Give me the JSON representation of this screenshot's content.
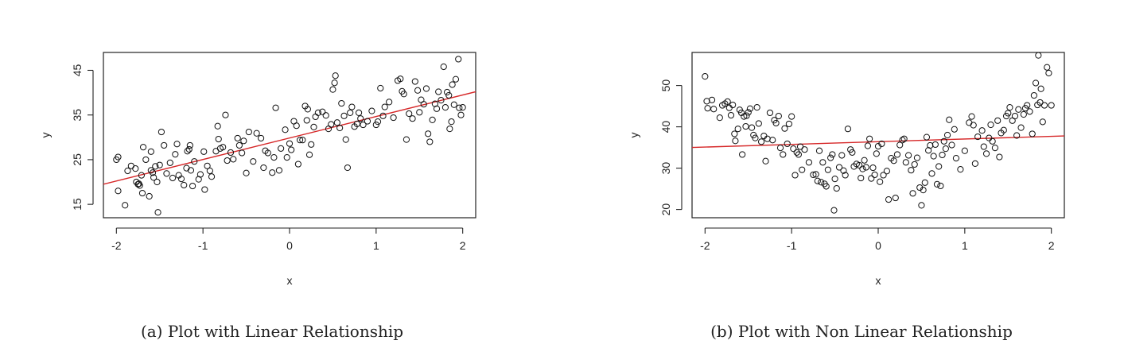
{
  "chart_data": [
    {
      "type": "scatter",
      "title": "",
      "caption": "(a) Plot with Linear Relationship",
      "xlabel": "x",
      "ylabel": "y",
      "xlim": [
        -2.15,
        2.15
      ],
      "ylim": [
        12,
        49
      ],
      "x_ticks": [
        -2,
        -1,
        0,
        1,
        2
      ],
      "x_tick_labels": [
        "-2",
        "-1",
        "0",
        "1",
        "2"
      ],
      "y_ticks": [
        15,
        25,
        35,
        45
      ],
      "y_tick_labels": [
        "15",
        "25",
        "35",
        "45"
      ],
      "fit_line": {
        "color": "#d62728",
        "x": [
          -2.15,
          2.15
        ],
        "y": [
          19.5,
          40.2
        ]
      },
      "points": [
        [
          -2.0,
          25
        ],
        [
          -1.98,
          25.6
        ],
        [
          -1.98,
          18
        ],
        [
          -1.9,
          14.8
        ],
        [
          -1.87,
          22.5
        ],
        [
          -1.83,
          23.6
        ],
        [
          -1.78,
          23
        ],
        [
          -1.77,
          20
        ],
        [
          -1.75,
          19.5
        ],
        [
          -1.74,
          19.6
        ],
        [
          -1.73,
          19.2
        ],
        [
          -1.71,
          21.5
        ],
        [
          -1.7,
          17.5
        ],
        [
          -1.69,
          27.8
        ],
        [
          -1.66,
          25
        ],
        [
          -1.62,
          16.8
        ],
        [
          -1.6,
          26.8
        ],
        [
          -1.6,
          22.6
        ],
        [
          -1.58,
          22.1
        ],
        [
          -1.57,
          21
        ],
        [
          -1.55,
          23.5
        ],
        [
          -1.53,
          20
        ],
        [
          -1.52,
          13.2
        ],
        [
          -1.5,
          23.8
        ],
        [
          -1.48,
          31.2
        ],
        [
          -1.45,
          28.2
        ],
        [
          -1.42,
          21.9
        ],
        [
          -1.38,
          24.3
        ],
        [
          -1.35,
          20.9
        ],
        [
          -1.32,
          26.2
        ],
        [
          -1.3,
          28.5
        ],
        [
          -1.28,
          21.5
        ],
        [
          -1.25,
          20.7
        ],
        [
          -1.22,
          19.3
        ],
        [
          -1.19,
          23.1
        ],
        [
          -1.18,
          26.9
        ],
        [
          -1.16,
          27.3
        ],
        [
          -1.15,
          28.2
        ],
        [
          -1.14,
          22.6
        ],
        [
          -1.12,
          19.1
        ],
        [
          -1.1,
          24.6
        ],
        [
          -1.05,
          20.6
        ],
        [
          -1.03,
          21.7
        ],
        [
          -0.99,
          26.8
        ],
        [
          -0.98,
          18.3
        ],
        [
          -0.95,
          23.6
        ],
        [
          -0.92,
          22.5
        ],
        [
          -0.9,
          21.2
        ],
        [
          -0.85,
          26.9
        ],
        [
          -0.83,
          32.5
        ],
        [
          -0.82,
          29.6
        ],
        [
          -0.8,
          27.5
        ],
        [
          -0.77,
          27.8
        ],
        [
          -0.74,
          35
        ],
        [
          -0.72,
          24.8
        ],
        [
          -0.68,
          26.6
        ],
        [
          -0.65,
          25.1
        ],
        [
          -0.6,
          29.8
        ],
        [
          -0.58,
          28.2
        ],
        [
          -0.55,
          26.5
        ],
        [
          -0.53,
          29.2
        ],
        [
          -0.5,
          22
        ],
        [
          -0.47,
          31.2
        ],
        [
          -0.42,
          24.6
        ],
        [
          -0.38,
          30.9
        ],
        [
          -0.33,
          29.8
        ],
        [
          -0.3,
          23.2
        ],
        [
          -0.28,
          27
        ],
        [
          -0.25,
          26.5
        ],
        [
          -0.2,
          22.1
        ],
        [
          -0.18,
          25.5
        ],
        [
          -0.16,
          36.6
        ],
        [
          -0.12,
          22.6
        ],
        [
          -0.1,
          27.5
        ],
        [
          -0.05,
          31.7
        ],
        [
          -0.03,
          25.5
        ],
        [
          0.0,
          28.6
        ],
        [
          0.02,
          27.2
        ],
        [
          0.05,
          33.6
        ],
        [
          0.08,
          32.6
        ],
        [
          0.1,
          24
        ],
        [
          0.12,
          29.4
        ],
        [
          0.15,
          29.4
        ],
        [
          0.18,
          37
        ],
        [
          0.2,
          33.8
        ],
        [
          0.21,
          36.3
        ],
        [
          0.23,
          26.1
        ],
        [
          0.25,
          28.4
        ],
        [
          0.28,
          32.3
        ],
        [
          0.3,
          34.6
        ],
        [
          0.33,
          35.5
        ],
        [
          0.38,
          35.7
        ],
        [
          0.42,
          34.9
        ],
        [
          0.45,
          31.9
        ],
        [
          0.48,
          32.9
        ],
        [
          0.5,
          40.7
        ],
        [
          0.52,
          42.2
        ],
        [
          0.53,
          43.8
        ],
        [
          0.55,
          33.3
        ],
        [
          0.58,
          32.1
        ],
        [
          0.6,
          37.6
        ],
        [
          0.63,
          34.8
        ],
        [
          0.65,
          29.5
        ],
        [
          0.67,
          23.2
        ],
        [
          0.7,
          35.5
        ],
        [
          0.72,
          36.8
        ],
        [
          0.75,
          32.4
        ],
        [
          0.78,
          33
        ],
        [
          0.8,
          35.5
        ],
        [
          0.82,
          34.2
        ],
        [
          0.85,
          32.8
        ],
        [
          0.9,
          33.6
        ],
        [
          0.95,
          35.9
        ],
        [
          1.0,
          32.8
        ],
        [
          1.02,
          33.5
        ],
        [
          1.05,
          41
        ],
        [
          1.08,
          34.8
        ],
        [
          1.1,
          36.8
        ],
        [
          1.15,
          37.9
        ],
        [
          1.2,
          34.4
        ],
        [
          1.25,
          42.7
        ],
        [
          1.28,
          43.1
        ],
        [
          1.3,
          40.3
        ],
        [
          1.32,
          39.7
        ],
        [
          1.35,
          29.5
        ],
        [
          1.38,
          35.3
        ],
        [
          1.42,
          34.2
        ],
        [
          1.45,
          42.5
        ],
        [
          1.48,
          40.5
        ],
        [
          1.5,
          35.6
        ],
        [
          1.52,
          38.4
        ],
        [
          1.55,
          37.4
        ],
        [
          1.58,
          40.9
        ],
        [
          1.6,
          30.8
        ],
        [
          1.62,
          29
        ],
        [
          1.65,
          33.9
        ],
        [
          1.68,
          37.5
        ],
        [
          1.7,
          36.4
        ],
        [
          1.72,
          40.2
        ],
        [
          1.75,
          38.3
        ],
        [
          1.78,
          45.8
        ],
        [
          1.8,
          36.7
        ],
        [
          1.82,
          40.1
        ],
        [
          1.84,
          39.4
        ],
        [
          1.85,
          31.9
        ],
        [
          1.87,
          33.5
        ],
        [
          1.88,
          41.8
        ],
        [
          1.9,
          37.3
        ],
        [
          1.92,
          43
        ],
        [
          1.95,
          47.5
        ],
        [
          1.96,
          36.6
        ],
        [
          1.98,
          35
        ],
        [
          2.0,
          36.7
        ]
      ]
    },
    {
      "type": "scatter",
      "title": "",
      "caption": "(b) Plot with Non Linear Relationship",
      "xlabel": "x",
      "ylabel": "y",
      "xlim": [
        -2.15,
        2.15
      ],
      "ylim": [
        18,
        58
      ],
      "x_ticks": [
        -2,
        -1,
        0,
        1,
        2
      ],
      "x_tick_labels": [
        "-2",
        "-1",
        "0",
        "1",
        "2"
      ],
      "y_ticks": [
        20,
        30,
        40,
        50
      ],
      "y_tick_labels": [
        "20",
        "30",
        "40",
        "50"
      ],
      "fit_line": {
        "color": "#d62728",
        "x": [
          -2.15,
          2.15
        ],
        "y": [
          35.0,
          37.8
        ]
      },
      "points": [
        [
          -2.0,
          52.2
        ],
        [
          -1.98,
          46.2
        ],
        [
          -1.97,
          44.5
        ],
        [
          -1.92,
          46.5
        ],
        [
          -1.9,
          44.3
        ],
        [
          -1.83,
          42.2
        ],
        [
          -1.8,
          45.2
        ],
        [
          -1.77,
          45.6
        ],
        [
          -1.74,
          46.1
        ],
        [
          -1.72,
          44.6
        ],
        [
          -1.7,
          42.8
        ],
        [
          -1.68,
          45.3
        ],
        [
          -1.66,
          38.3
        ],
        [
          -1.65,
          36.6
        ],
        [
          -1.62,
          39.5
        ],
        [
          -1.6,
          44.1
        ],
        [
          -1.58,
          43.4
        ],
        [
          -1.57,
          33.3
        ],
        [
          -1.55,
          42.5
        ],
        [
          -1.53,
          40.1
        ],
        [
          -1.52,
          42.7
        ],
        [
          -1.5,
          43.5
        ],
        [
          -1.48,
          44.4
        ],
        [
          -1.46,
          39.8
        ],
        [
          -1.44,
          38
        ],
        [
          -1.42,
          37.3
        ],
        [
          -1.4,
          44.7
        ],
        [
          -1.38,
          40.8
        ],
        [
          -1.35,
          36.4
        ],
        [
          -1.32,
          37.8
        ],
        [
          -1.3,
          31.7
        ],
        [
          -1.28,
          37.1
        ],
        [
          -1.25,
          43.4
        ],
        [
          -1.22,
          36.8
        ],
        [
          -1.2,
          41.6
        ],
        [
          -1.18,
          40.9
        ],
        [
          -1.15,
          42.6
        ],
        [
          -1.13,
          34.9
        ],
        [
          -1.1,
          33.3
        ],
        [
          -1.08,
          39.6
        ],
        [
          -1.05,
          35.9
        ],
        [
          -1.03,
          40.7
        ],
        [
          -1.0,
          42.5
        ],
        [
          -0.98,
          34.7
        ],
        [
          -0.96,
          28.3
        ],
        [
          -0.94,
          33.8
        ],
        [
          -0.92,
          33.3
        ],
        [
          -0.9,
          35.2
        ],
        [
          -0.88,
          29.6
        ],
        [
          -0.85,
          34.5
        ],
        [
          -0.8,
          31.4
        ],
        [
          -0.75,
          28.4
        ],
        [
          -0.72,
          28.5
        ],
        [
          -0.7,
          26.9
        ],
        [
          -0.68,
          34.2
        ],
        [
          -0.66,
          26.6
        ],
        [
          -0.64,
          31.4
        ],
        [
          -0.62,
          26.2
        ],
        [
          -0.6,
          25.6
        ],
        [
          -0.58,
          29.6
        ],
        [
          -0.55,
          32.5
        ],
        [
          -0.53,
          33.3
        ],
        [
          -0.51,
          19.8
        ],
        [
          -0.5,
          27.4
        ],
        [
          -0.48,
          25.1
        ],
        [
          -0.45,
          30.2
        ],
        [
          -0.42,
          33.1
        ],
        [
          -0.4,
          29.4
        ],
        [
          -0.38,
          28.3
        ],
        [
          -0.35,
          39.5
        ],
        [
          -0.32,
          34.5
        ],
        [
          -0.3,
          33.8
        ],
        [
          -0.28,
          30.4
        ],
        [
          -0.25,
          31
        ],
        [
          -0.22,
          30.7
        ],
        [
          -0.2,
          27.6
        ],
        [
          -0.18,
          29.8
        ],
        [
          -0.16,
          31.9
        ],
        [
          -0.14,
          30.2
        ],
        [
          -0.12,
          35.4
        ],
        [
          -0.1,
          37.1
        ],
        [
          -0.08,
          27.5
        ],
        [
          -0.06,
          30.1
        ],
        [
          -0.04,
          28.4
        ],
        [
          -0.02,
          33.5
        ],
        [
          0.0,
          35.3
        ],
        [
          0.02,
          26.7
        ],
        [
          0.04,
          35.9
        ],
        [
          0.06,
          28.3
        ],
        [
          0.1,
          29.3
        ],
        [
          0.12,
          22.4
        ],
        [
          0.15,
          32.4
        ],
        [
          0.18,
          31.8
        ],
        [
          0.2,
          22.8
        ],
        [
          0.22,
          33.3
        ],
        [
          0.25,
          35.6
        ],
        [
          0.28,
          36.8
        ],
        [
          0.3,
          37.1
        ],
        [
          0.32,
          31.4
        ],
        [
          0.35,
          33.1
        ],
        [
          0.38,
          29.5
        ],
        [
          0.4,
          23.9
        ],
        [
          0.42,
          30.9
        ],
        [
          0.45,
          32.5
        ],
        [
          0.48,
          25.3
        ],
        [
          0.5,
          21
        ],
        [
          0.52,
          24.7
        ],
        [
          0.54,
          26.5
        ],
        [
          0.56,
          37.5
        ],
        [
          0.58,
          34.3
        ],
        [
          0.6,
          35.5
        ],
        [
          0.62,
          28.7
        ],
        [
          0.64,
          32.9
        ],
        [
          0.66,
          35.7
        ],
        [
          0.68,
          26.1
        ],
        [
          0.7,
          30.4
        ],
        [
          0.72,
          25.7
        ],
        [
          0.74,
          33.2
        ],
        [
          0.76,
          36.5
        ],
        [
          0.78,
          34.7
        ],
        [
          0.8,
          38
        ],
        [
          0.82,
          41.7
        ],
        [
          0.85,
          35.6
        ],
        [
          0.88,
          39.4
        ],
        [
          0.9,
          32.4
        ],
        [
          0.95,
          29.7
        ],
        [
          1.0,
          34.2
        ],
        [
          1.05,
          41
        ],
        [
          1.08,
          42.5
        ],
        [
          1.1,
          40.4
        ],
        [
          1.12,
          31.1
        ],
        [
          1.15,
          37.6
        ],
        [
          1.2,
          39.1
        ],
        [
          1.22,
          35.2
        ],
        [
          1.25,
          33.5
        ],
        [
          1.28,
          37.3
        ],
        [
          1.3,
          40.5
        ],
        [
          1.32,
          36.5
        ],
        [
          1.35,
          34.9
        ],
        [
          1.38,
          41.5
        ],
        [
          1.4,
          32.7
        ],
        [
          1.42,
          38.5
        ],
        [
          1.45,
          39.2
        ],
        [
          1.48,
          42.6
        ],
        [
          1.5,
          43.3
        ],
        [
          1.52,
          44.7
        ],
        [
          1.55,
          41.5
        ],
        [
          1.58,
          42.6
        ],
        [
          1.6,
          37.9
        ],
        [
          1.62,
          44.2
        ],
        [
          1.65,
          39.8
        ],
        [
          1.68,
          43
        ],
        [
          1.7,
          44.5
        ],
        [
          1.72,
          45.2
        ],
        [
          1.75,
          43.7
        ],
        [
          1.78,
          38.3
        ],
        [
          1.8,
          47.6
        ],
        [
          1.82,
          50.6
        ],
        [
          1.84,
          45.3
        ],
        [
          1.85,
          57.3
        ],
        [
          1.87,
          45.9
        ],
        [
          1.88,
          49.2
        ],
        [
          1.9,
          41.2
        ],
        [
          1.92,
          45.2
        ],
        [
          1.95,
          54.4
        ],
        [
          1.97,
          53
        ],
        [
          2.0,
          45.2
        ]
      ]
    }
  ]
}
